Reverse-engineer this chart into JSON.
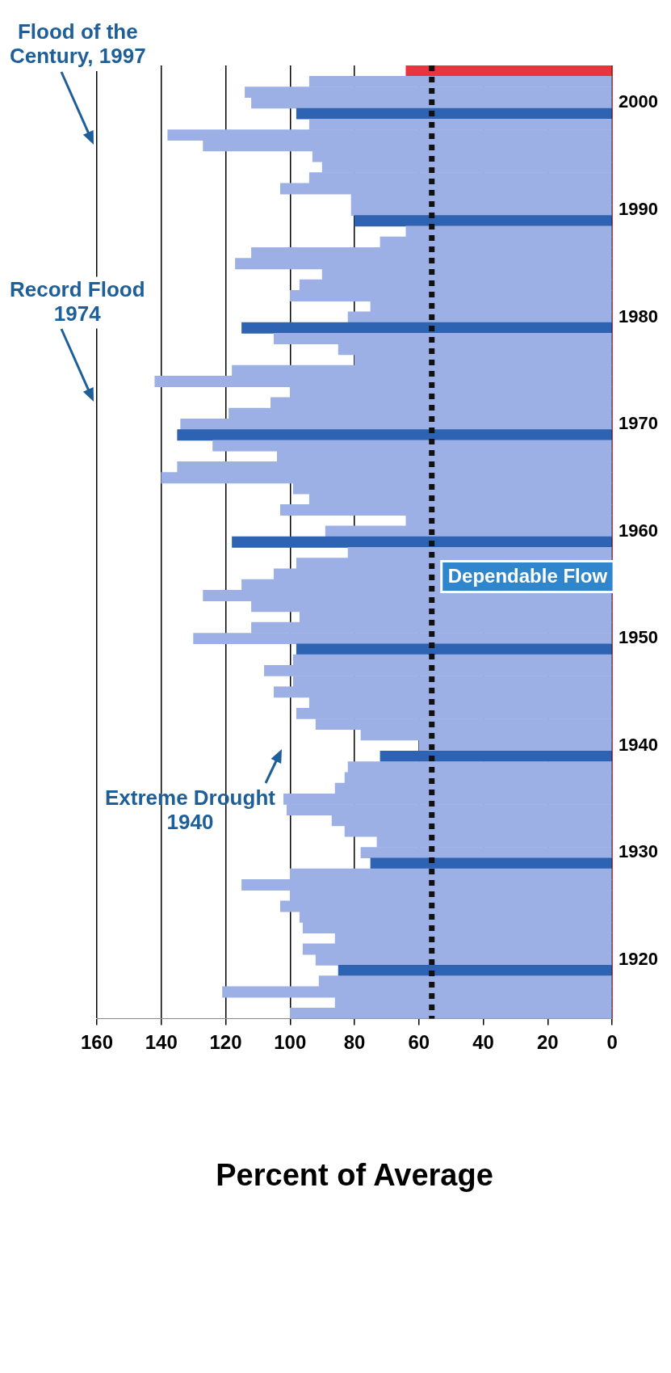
{
  "chart_data": {
    "type": "bar",
    "orientation": "horizontal",
    "xlabel": "Percent of Average",
    "categories": [
      null,
      null,
      null,
      "2000",
      null,
      null,
      null,
      null,
      null,
      null,
      null,
      null,
      null,
      "1990",
      null,
      null,
      null,
      null,
      null,
      null,
      null,
      null,
      null,
      "1980",
      null,
      null,
      null,
      null,
      null,
      null,
      null,
      null,
      null,
      "1970",
      null,
      null,
      null,
      null,
      null,
      null,
      null,
      null,
      null,
      "1960",
      null,
      null,
      null,
      null,
      null,
      null,
      null,
      null,
      null,
      "1950",
      null,
      null,
      null,
      null,
      null,
      null,
      null,
      null,
      null,
      "1940",
      null,
      null,
      null,
      null,
      null,
      null,
      null,
      null,
      null,
      "1930",
      null,
      null,
      null,
      null,
      null,
      null,
      null,
      null,
      null,
      "1920",
      null,
      null,
      null,
      null,
      null
    ],
    "values": [
      64,
      94,
      114,
      112,
      98,
      94,
      138,
      127,
      93,
      90,
      94,
      103,
      81,
      81,
      80,
      64,
      72,
      112,
      117,
      90,
      97,
      100,
      75,
      82,
      115,
      105,
      85,
      80,
      118,
      142,
      100,
      106,
      119,
      134,
      135,
      124,
      104,
      135,
      140,
      99,
      94,
      103,
      64,
      89,
      118,
      82,
      98,
      105,
      115,
      127,
      112,
      97,
      112,
      130,
      98,
      99,
      108,
      99,
      105,
      94,
      98,
      92,
      78,
      60,
      72,
      82,
      83,
      86,
      102,
      101,
      87,
      83,
      73,
      78,
      75,
      100,
      115,
      100,
      103,
      97,
      96,
      86,
      96,
      92,
      85,
      91,
      121,
      86,
      100
    ],
    "colors": [
      "#e8343c",
      "#9db0e6",
      "#9db0e6",
      "#9db0e6",
      "#2d63b2",
      "#9db0e6",
      "#9db0e6",
      "#9db0e6",
      "#9db0e6",
      "#9db0e6",
      "#9db0e6",
      "#9db0e6",
      "#9db0e6",
      "#9db0e6",
      "#2d63b2",
      "#9db0e6",
      "#9db0e6",
      "#9db0e6",
      "#9db0e6",
      "#9db0e6",
      "#9db0e6",
      "#9db0e6",
      "#9db0e6",
      "#9db0e6",
      "#2d63b2",
      "#9db0e6",
      "#9db0e6",
      "#9db0e6",
      "#9db0e6",
      "#9db0e6",
      "#9db0e6",
      "#9db0e6",
      "#9db0e6",
      "#9db0e6",
      "#2d63b2",
      "#9db0e6",
      "#9db0e6",
      "#9db0e6",
      "#9db0e6",
      "#9db0e6",
      "#9db0e6",
      "#9db0e6",
      "#9db0e6",
      "#9db0e6",
      "#2d63b2",
      "#9db0e6",
      "#9db0e6",
      "#9db0e6",
      "#9db0e6",
      "#9db0e6",
      "#9db0e6",
      "#9db0e6",
      "#9db0e6",
      "#9db0e6",
      "#2d63b2",
      "#9db0e6",
      "#9db0e6",
      "#9db0e6",
      "#9db0e6",
      "#9db0e6",
      "#9db0e6",
      "#9db0e6",
      "#9db0e6",
      "#9db0e6",
      "#2d63b2",
      "#9db0e6",
      "#9db0e6",
      "#9db0e6",
      "#9db0e6",
      "#9db0e6",
      "#9db0e6",
      "#9db0e6",
      "#9db0e6",
      "#9db0e6",
      "#2d63b2",
      "#9db0e6",
      "#9db0e6",
      "#9db0e6",
      "#9db0e6",
      "#9db0e6",
      "#9db0e6",
      "#9db0e6",
      "#9db0e6",
      "#9db0e6",
      "#2d63b2",
      "#9db0e6",
      "#9db0e6",
      "#9db0e6",
      "#9db0e6"
    ],
    "xlim": [
      160,
      0
    ],
    "xticks": [
      160,
      140,
      120,
      100,
      80,
      60,
      40,
      20,
      0
    ],
    "grid": "x",
    "ref_lines": [
      {
        "axis": "x",
        "value": 56,
        "label": "Dependable Flow",
        "color": "#111111",
        "line_style": "dotted"
      }
    ],
    "annotations": [
      "Record Flood\n1974",
      "Flood of the\nCentury, 1997",
      "Extreme Drought\n1940"
    ]
  }
}
